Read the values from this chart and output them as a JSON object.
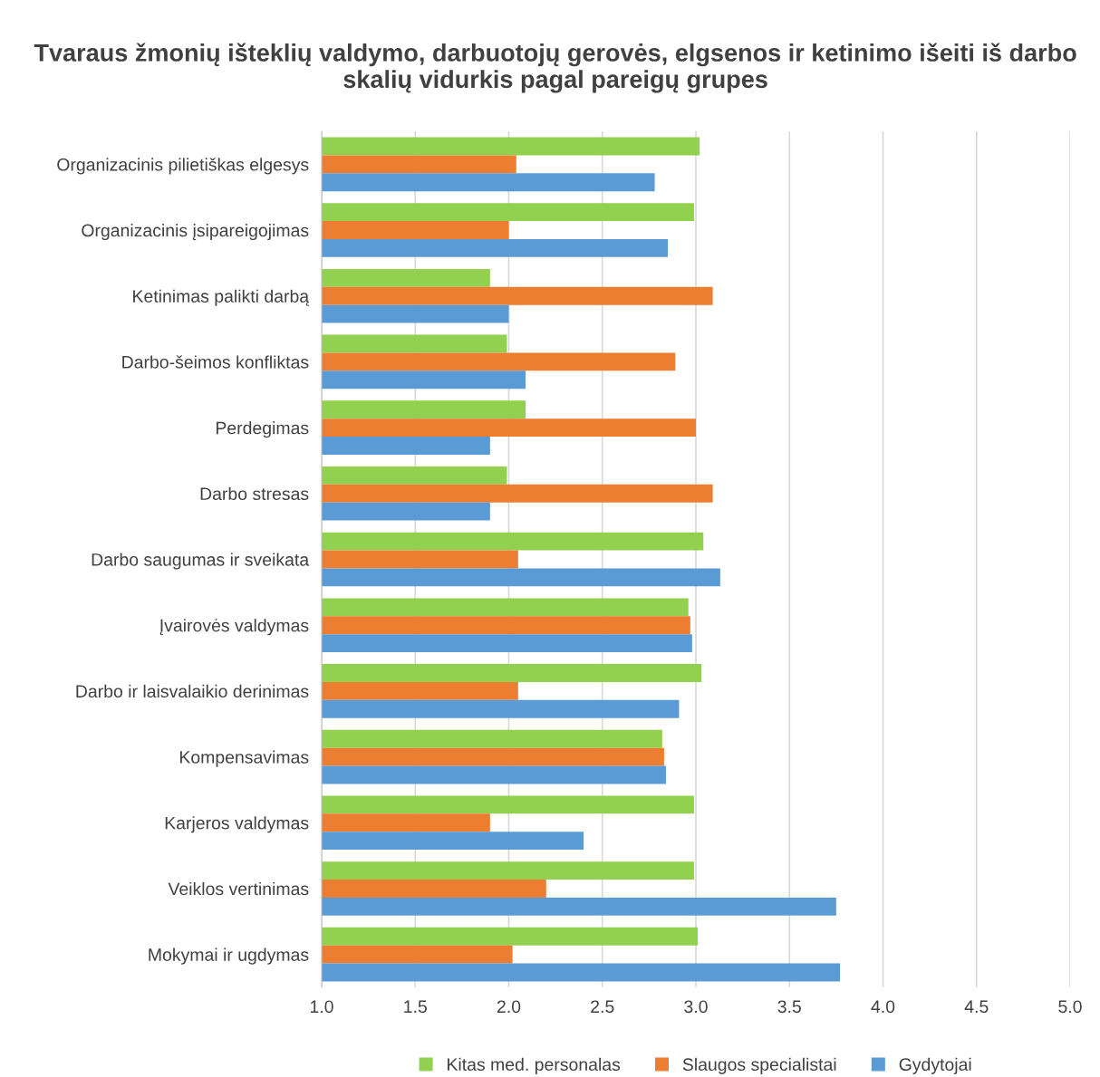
{
  "chart_data": {
    "type": "bar",
    "orientation": "horizontal",
    "title": "Tvaraus žmonių išteklių valdymo, darbuotojų gerovės, elgsenos ir ketinimo išeiti iš darbo skalių vidurkis pagal pareigų grupes",
    "categories": [
      "Organizacinis pilietiškas elgesys",
      "Organizacinis įsipareigojimas",
      "Ketinimas palikti darbą",
      "Darbo-šeimos konfliktas",
      "Perdegimas",
      "Darbo stresas",
      "Darbo saugumas ir sveikata",
      "Įvairovės valdymas",
      "Darbo ir laisvalaikio derinimas",
      "Kompensavimas",
      "Karjeros valdymas",
      "Veiklos vertinimas",
      "Mokymai ir ugdymas"
    ],
    "series": [
      {
        "name": "Kitas med. personalas",
        "color": "#92d050",
        "values": [
          3.02,
          2.99,
          1.9,
          1.99,
          2.09,
          1.99,
          3.04,
          2.96,
          3.03,
          2.82,
          2.99,
          2.99,
          3.01
        ]
      },
      {
        "name": "Slaugos specialistai",
        "color": "#ed7d31",
        "values": [
          2.04,
          2.0,
          3.09,
          2.89,
          3.0,
          3.09,
          2.05,
          2.97,
          2.05,
          2.83,
          1.9,
          2.2,
          2.02
        ]
      },
      {
        "name": "Gydytojai",
        "color": "#5b9bd5",
        "values": [
          2.78,
          2.85,
          2.0,
          2.09,
          1.9,
          1.9,
          3.13,
          2.98,
          2.91,
          2.84,
          2.4,
          3.75,
          3.77
        ]
      }
    ],
    "xlim": [
      1.0,
      5.0
    ],
    "xticks": [
      {
        "value": 1.0,
        "label": "1.0"
      },
      {
        "value": 1.5,
        "label": "1.5"
      },
      {
        "value": 2.0,
        "label": "2.0"
      },
      {
        "value": 2.5,
        "label": "2.5"
      },
      {
        "value": 3.0,
        "label": "3.0"
      },
      {
        "value": 3.5,
        "label": "3.5"
      },
      {
        "value": 4.0,
        "label": "4.0"
      },
      {
        "value": 4.5,
        "label": "4.5"
      },
      {
        "value": 5.0,
        "label": "5.0"
      }
    ],
    "grid": "x",
    "legend": "bottom"
  }
}
